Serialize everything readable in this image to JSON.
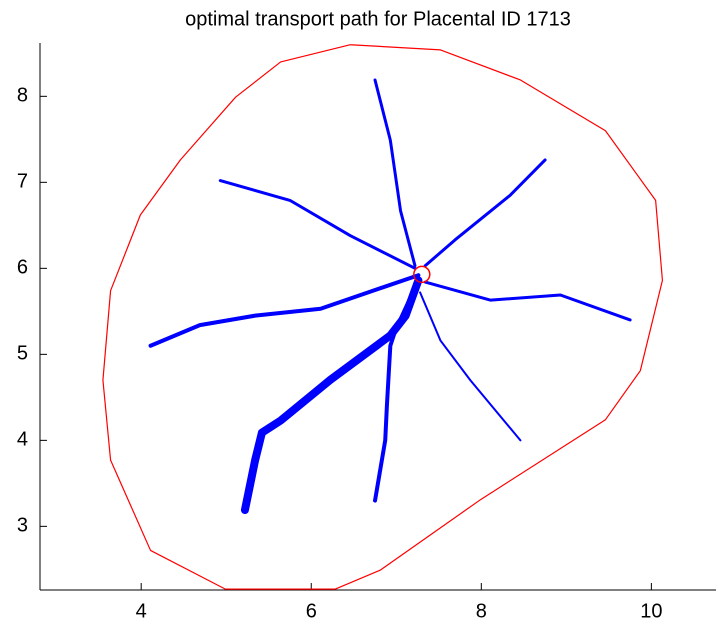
{
  "chart_data": {
    "type": "line",
    "title": "optimal transport path for Placental ID 1713",
    "xlim": [
      2.81,
      10.76
    ],
    "ylim": [
      2.26,
      8.62
    ],
    "xticks": [
      4,
      6,
      8,
      10
    ],
    "yticks": [
      3,
      4,
      5,
      6,
      7,
      8
    ],
    "series": [
      {
        "color": "#ff0000",
        "linewidth": 1.2,
        "x": [
          6.46,
          5.64,
          5.11,
          4.46,
          3.99,
          3.64,
          3.55,
          3.64,
          4.11,
          4.99,
          6.28,
          6.81,
          7.99,
          9.46,
          9.87,
          10.13,
          10.05,
          9.46,
          8.46,
          7.52,
          6.46
        ],
        "y": [
          8.6,
          8.4,
          7.99,
          7.26,
          6.62,
          5.74,
          4.7,
          3.77,
          2.72,
          2.27,
          2.27,
          2.49,
          3.31,
          4.24,
          4.81,
          5.86,
          6.79,
          7.6,
          8.19,
          8.54,
          8.6
        ]
      },
      {
        "color": "#0000ff",
        "linewidth": 8,
        "x": [
          7.26,
          7.11,
          6.93,
          6.22,
          5.64,
          5.42,
          5.34,
          5.22
        ],
        "y": [
          5.86,
          5.45,
          5.22,
          4.7,
          4.23,
          4.09,
          3.77,
          3.19
        ]
      },
      {
        "color": "#0000ff",
        "linewidth": 4,
        "x": [
          7.26,
          6.99,
          6.93,
          6.89,
          6.87,
          6.75
        ],
        "y": [
          5.86,
          5.28,
          5.1,
          4.41,
          4.0,
          3.3
        ]
      },
      {
        "color": "#0000ff",
        "linewidth": 4,
        "x": [
          7.26,
          6.58,
          6.11,
          5.34,
          4.69,
          4.11
        ],
        "y": [
          5.92,
          5.69,
          5.53,
          5.45,
          5.34,
          5.1
        ]
      },
      {
        "color": "#0000ff",
        "linewidth": 3,
        "x": [
          7.22,
          6.46,
          5.75,
          4.93
        ],
        "y": [
          6.0,
          6.38,
          6.79,
          7.02
        ]
      },
      {
        "color": "#0000ff",
        "linewidth": 3,
        "x": [
          7.22,
          7.05,
          6.93,
          6.75
        ],
        "y": [
          6.03,
          6.67,
          7.49,
          8.19
        ]
      },
      {
        "color": "#0000ff",
        "linewidth": 3,
        "x": [
          7.34,
          7.69,
          8.34,
          8.75
        ],
        "y": [
          6.03,
          6.33,
          6.85,
          7.26
        ]
      },
      {
        "color": "#0000ff",
        "linewidth": 3,
        "x": [
          7.34,
          8.11,
          8.93,
          9.75
        ],
        "y": [
          5.84,
          5.63,
          5.69,
          5.4
        ]
      },
      {
        "color": "#0000ff",
        "linewidth": 2,
        "x": [
          7.28,
          7.52,
          7.87,
          8.46
        ],
        "y": [
          5.72,
          5.16,
          4.7,
          4.0
        ]
      }
    ],
    "root": {
      "x": 7.3,
      "y": 5.93,
      "color": "#ff0000"
    }
  }
}
